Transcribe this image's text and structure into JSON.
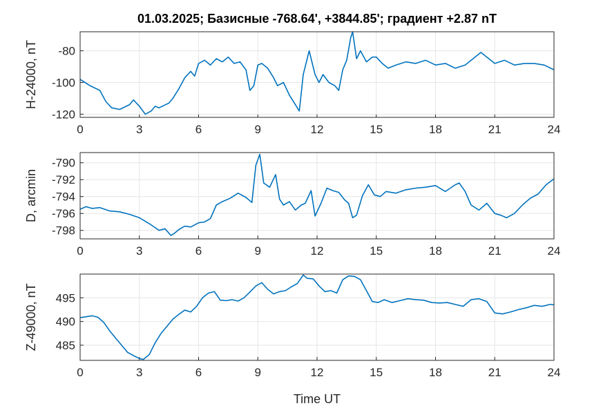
{
  "figure": {
    "title": "01.03.2025;  Базисные  -768.64', +3844.85'; градиент +2.87 nT",
    "xlabel": "Time UT"
  },
  "chart_data": [
    {
      "type": "line",
      "ylabel": "H-24000, nT",
      "xlim": [
        0,
        24
      ],
      "ylim": [
        -122,
        -68
      ],
      "xticks": [
        "0",
        "3",
        "6",
        "9",
        "12",
        "15",
        "18",
        "21",
        "24"
      ],
      "yticks": [
        "-80",
        "-100",
        "-120"
      ],
      "ytick_values": [
        -80,
        -100,
        -120
      ],
      "grid": true,
      "color": "#0072bd",
      "x": [
        0,
        0.5,
        1.0,
        1.3,
        1.6,
        2.0,
        2.5,
        2.7,
        3.0,
        3.3,
        3.6,
        3.8,
        4.0,
        4.5,
        4.7,
        5.0,
        5.3,
        5.6,
        5.8,
        6.0,
        6.3,
        6.6,
        6.9,
        7.2,
        7.5,
        7.8,
        8.1,
        8.4,
        8.6,
        8.8,
        9.0,
        9.2,
        9.5,
        9.8,
        10.0,
        10.3,
        10.6,
        10.9,
        11.1,
        11.3,
        11.6,
        11.9,
        12.1,
        12.3,
        12.6,
        12.9,
        13.1,
        13.3,
        13.5,
        13.7,
        13.8,
        14.0,
        14.2,
        14.5,
        14.8,
        15.0,
        15.3,
        15.6,
        16.0,
        16.5,
        17.0,
        17.5,
        18.0,
        18.5,
        19.0,
        19.5,
        20.0,
        20.3,
        20.6,
        21.0,
        21.5,
        22.0,
        22.5,
        23.0,
        23.5,
        24.0
      ],
      "y": [
        -98,
        -102,
        -105,
        -112,
        -116,
        -117,
        -114,
        -111,
        -115,
        -120,
        -118,
        -115,
        -116,
        -113,
        -110,
        -104,
        -97,
        -93,
        -96,
        -88,
        -86,
        -89,
        -85,
        -87,
        -84,
        -88,
        -87,
        -92,
        -105,
        -102,
        -89,
        -88,
        -91,
        -97,
        -102,
        -100,
        -108,
        -114,
        -118,
        -95,
        -80,
        -95,
        -100,
        -95,
        -100,
        -102,
        -105,
        -92,
        -86,
        -72,
        -68,
        -85,
        -80,
        -87,
        -84,
        -84,
        -88,
        -91,
        -89,
        -87,
        -88,
        -86,
        -89,
        -88,
        -91,
        -89,
        -84,
        -81,
        -84,
        -88,
        -86,
        -89,
        -88,
        -88,
        -89,
        -92
      ]
    },
    {
      "type": "line",
      "ylabel": "D, arcmin",
      "xlim": [
        0,
        24
      ],
      "ylim": [
        -799,
        -788.8
      ],
      "xticks": [
        "0",
        "3",
        "6",
        "9",
        "12",
        "15",
        "18",
        "21",
        "24"
      ],
      "yticks": [
        "-790",
        "-792",
        "-794",
        "-796",
        "-798"
      ],
      "ytick_values": [
        -790,
        -792,
        -794,
        -796,
        -798
      ],
      "grid": true,
      "color": "#0072bd",
      "x": [
        0,
        0.3,
        0.6,
        1.0,
        1.5,
        2.0,
        2.5,
        3.0,
        3.5,
        4.0,
        4.3,
        4.6,
        4.8,
        5.0,
        5.3,
        5.6,
        6.0,
        6.3,
        6.6,
        6.9,
        7.2,
        7.6,
        8.0,
        8.4,
        8.7,
        8.9,
        9.1,
        9.3,
        9.6,
        9.9,
        10.1,
        10.3,
        10.6,
        10.9,
        11.2,
        11.4,
        11.7,
        11.9,
        12.2,
        12.5,
        12.8,
        13.1,
        13.4,
        13.6,
        13.8,
        14.0,
        14.3,
        14.6,
        14.9,
        15.2,
        15.5,
        16.0,
        16.5,
        17.0,
        17.5,
        18.0,
        18.5,
        19.0,
        19.2,
        19.5,
        19.8,
        20.2,
        20.6,
        21.0,
        21.3,
        21.6,
        22.0,
        22.4,
        22.8,
        23.2,
        23.6,
        24.0
      ],
      "y": [
        -795.5,
        -795.2,
        -795.4,
        -795.3,
        -795.7,
        -795.8,
        -796.1,
        -796.5,
        -797.2,
        -798.0,
        -797.8,
        -798.6,
        -798.3,
        -797.9,
        -797.5,
        -797.6,
        -797.1,
        -797.0,
        -796.6,
        -795.0,
        -794.6,
        -794.2,
        -793.6,
        -794.1,
        -794.7,
        -790.3,
        -789.0,
        -792.4,
        -792.9,
        -791.4,
        -794.3,
        -795.0,
        -794.6,
        -795.6,
        -795.0,
        -794.8,
        -793.3,
        -796.3,
        -794.8,
        -793.0,
        -793.3,
        -793.5,
        -794.4,
        -794.8,
        -796.5,
        -796.2,
        -793.9,
        -792.6,
        -793.8,
        -794.0,
        -793.4,
        -793.6,
        -793.2,
        -793.0,
        -792.9,
        -792.7,
        -793.4,
        -792.6,
        -792.4,
        -793.4,
        -795.0,
        -795.6,
        -794.8,
        -796.0,
        -796.2,
        -796.5,
        -796.0,
        -795.0,
        -794.2,
        -793.7,
        -792.6,
        -791.9
      ]
    },
    {
      "type": "line",
      "ylabel": "Z-49000, nT",
      "xlim": [
        0,
        24
      ],
      "ylim": [
        481.8,
        500
      ],
      "xticks": [
        "0",
        "3",
        "6",
        "9",
        "12",
        "15",
        "18",
        "21",
        "24"
      ],
      "yticks": [
        "495",
        "490",
        "485"
      ],
      "ytick_values": [
        495,
        490,
        485
      ],
      "grid": true,
      "color": "#0072bd",
      "x": [
        0,
        0.3,
        0.6,
        0.9,
        1.2,
        1.5,
        1.8,
        2.1,
        2.4,
        2.7,
        3.0,
        3.2,
        3.5,
        3.8,
        4.1,
        4.4,
        4.7,
        5.0,
        5.3,
        5.6,
        5.9,
        6.2,
        6.5,
        6.8,
        7.1,
        7.4,
        7.7,
        8.0,
        8.3,
        8.6,
        8.9,
        9.2,
        9.5,
        9.8,
        10.1,
        10.4,
        10.7,
        11.0,
        11.3,
        11.5,
        11.8,
        12.1,
        12.4,
        12.7,
        13.0,
        13.3,
        13.6,
        13.9,
        14.2,
        14.5,
        14.8,
        15.1,
        15.4,
        15.8,
        16.2,
        16.6,
        17.0,
        17.4,
        17.8,
        18.2,
        18.6,
        19.0,
        19.4,
        19.8,
        20.2,
        20.6,
        21.0,
        21.4,
        21.8,
        22.2,
        22.6,
        23.0,
        23.4,
        23.8,
        24.0
      ],
      "y": [
        490.8,
        491.0,
        491.2,
        490.9,
        489.8,
        488.0,
        486.5,
        485.0,
        483.5,
        482.8,
        482.2,
        482.0,
        483.0,
        485.5,
        487.5,
        489.0,
        490.5,
        491.5,
        492.4,
        492.0,
        493.2,
        495.0,
        496.0,
        496.3,
        494.5,
        494.4,
        494.6,
        494.3,
        495.0,
        496.2,
        497.5,
        498.2,
        496.8,
        495.8,
        496.3,
        496.5,
        497.3,
        498.0,
        499.8,
        499.1,
        499.0,
        497.5,
        496.3,
        496.5,
        496.0,
        498.8,
        499.6,
        499.5,
        498.8,
        496.5,
        494.2,
        494.0,
        494.6,
        494.0,
        494.4,
        494.8,
        494.6,
        494.5,
        494.0,
        493.9,
        494.0,
        493.6,
        493.2,
        494.6,
        494.8,
        494.2,
        491.8,
        491.6,
        492.0,
        492.5,
        492.9,
        493.4,
        493.2,
        493.6,
        493.5
      ]
    }
  ]
}
